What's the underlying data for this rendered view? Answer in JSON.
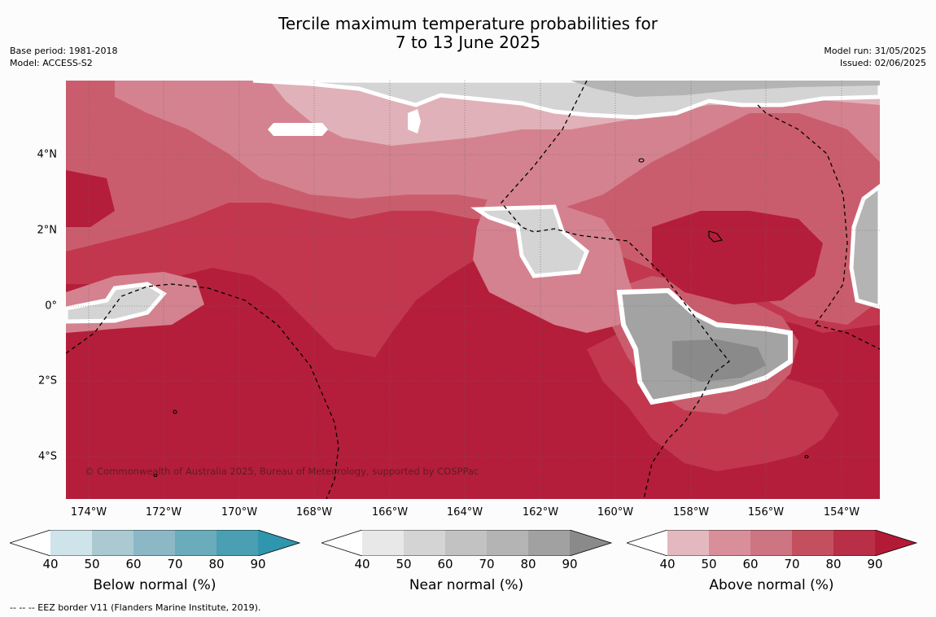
{
  "title": {
    "line1": "Tercile maximum temperature probabilities for",
    "line2": "7 to 13 June 2025"
  },
  "meta": {
    "base_period": "Base period: 1981-2018",
    "model": "Model: ACCESS-S2",
    "model_run": "Model run: 31/05/2025",
    "issued": "Issued: 02/06/2025"
  },
  "map": {
    "copyright": "© Commonwealth of Australia 2025, Bureau of Meteorology, supported by COSPPac",
    "lat_labels": [
      "4°N",
      "2°N",
      "0°",
      "2°S",
      "4°S"
    ],
    "lon_labels": [
      "174°W",
      "172°W",
      "170°W",
      "168°W",
      "166°W",
      "164°W",
      "162°W",
      "160°W",
      "158°W",
      "156°W",
      "154°W"
    ],
    "background_color": "#b41e3a",
    "eez_line_style": "dashed black"
  },
  "colorbars": [
    {
      "title": "Below normal (%)",
      "ticks": [
        "40",
        "50",
        "60",
        "70",
        "80",
        "90"
      ],
      "colors": [
        "#ffffff",
        "#cfe4ea",
        "#aac9d0",
        "#8cb8c6",
        "#6aacbc",
        "#4a9fb2",
        "#2f96ae"
      ]
    },
    {
      "title": "Near normal (%)",
      "ticks": [
        "40",
        "50",
        "60",
        "70",
        "80",
        "90"
      ],
      "colors": [
        "#ffffff",
        "#e8e8e8",
        "#d4d4d4",
        "#c2c2c2",
        "#b4b4b4",
        "#a1a1a1",
        "#8a8a8a"
      ]
    },
    {
      "title": "Above normal (%)",
      "ticks": [
        "40",
        "50",
        "60",
        "70",
        "80",
        "90"
      ],
      "colors": [
        "#ffffff",
        "#e3b8be",
        "#d88f99",
        "#cd7583",
        "#c4505f",
        "#b82f47",
        "#b21a36"
      ]
    }
  ],
  "footnote": "--  --  -- EEZ border V11 (Flanders Marine Institute, 2019)."
}
